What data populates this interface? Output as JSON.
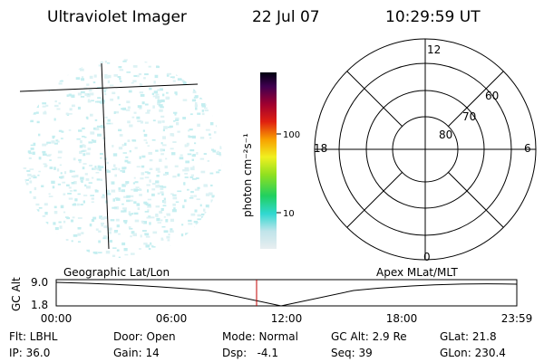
{
  "header": {
    "instrument": "Ultraviolet Imager",
    "date": "22 Jul 07",
    "time": "10:29:59 UT"
  },
  "colorbar": {
    "label": "photon cm⁻²s⁻¹",
    "ticks": [
      "100",
      "10"
    ]
  },
  "polar": {
    "mlt_labels": [
      "12",
      "18",
      "6",
      "0"
    ],
    "lat_labels": [
      "60",
      "70",
      "80"
    ]
  },
  "orbit": {
    "left_title": "Geographic Lat/Lon",
    "right_title": "Apex MLat/MLT",
    "y_label": "GC Alt",
    "y_ticks": [
      "9.0",
      "1.8"
    ],
    "x_ticks": [
      "00:00",
      "06:00",
      "12:00",
      "18:00",
      "23:59"
    ]
  },
  "status": {
    "rows": [
      [
        "Flt: LBHL",
        "Door: Open",
        "Mode: Normal",
        "GC Alt: 2.9 Re",
        "GLat: 21.8"
      ],
      [
        "IP: 36.0",
        "Gain: 14",
        "Dsp:   -4.1",
        "Seq: 39",
        "GLon: 230.4"
      ]
    ]
  }
}
